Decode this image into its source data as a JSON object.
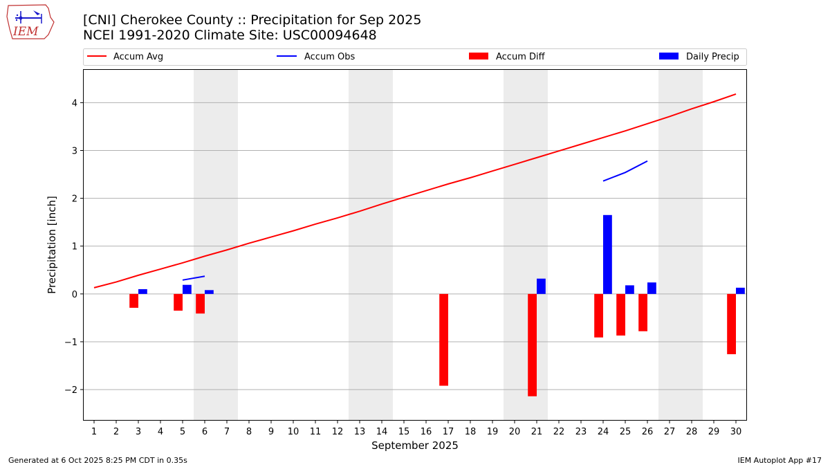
{
  "logo_text": "IEM",
  "title_line1": "[CNI] Cherokee County :: Precipitation for Sep 2025",
  "title_line2": "NCEI 1991-2020 Climate Site: USC00094648",
  "footer_left": "Generated at 6 Oct 2025 8:25 PM CDT in 0.35s",
  "footer_right": "IEM Autoplot App #17",
  "colors": {
    "avg": "#ff0000",
    "obs": "#0000ff",
    "diff": "#ff0000",
    "daily": "#0000ff",
    "weekend": "#ececec",
    "grid": "#b0b0b0"
  },
  "chart_data": {
    "type": "bar",
    "xlabel": "September 2025",
    "ylabel": "Precipitation [inch]",
    "xlim": [
      0.5,
      30.5
    ],
    "ylim": [
      -2.65,
      4.7
    ],
    "x_ticks": [
      1,
      2,
      3,
      4,
      5,
      6,
      7,
      8,
      9,
      10,
      11,
      12,
      13,
      14,
      15,
      16,
      17,
      18,
      19,
      20,
      21,
      22,
      23,
      24,
      25,
      26,
      27,
      28,
      29,
      30
    ],
    "y_ticks": [
      -2,
      -1,
      0,
      1,
      2,
      3,
      4
    ],
    "y_tick_labels": [
      "−2",
      "−1",
      "0",
      "1",
      "2",
      "3",
      "4"
    ],
    "weekend_spans": [
      [
        5.5,
        7.5
      ],
      [
        12.5,
        14.5
      ],
      [
        19.5,
        21.5
      ],
      [
        26.5,
        28.5
      ]
    ],
    "legend": [
      "Accum Avg",
      "Accum Obs",
      "Accum Diff",
      "Daily Precip"
    ],
    "accum_avg": {
      "name": "Accum Avg",
      "days": [
        1,
        2,
        3,
        4,
        5,
        6,
        7,
        8,
        9,
        10,
        11,
        12,
        13,
        14,
        15,
        16,
        17,
        18,
        19,
        20,
        21,
        22,
        23,
        24,
        25,
        26,
        27,
        28,
        29,
        30
      ],
      "values": [
        0.13,
        0.25,
        0.39,
        0.52,
        0.65,
        0.79,
        0.92,
        1.06,
        1.19,
        1.32,
        1.46,
        1.59,
        1.73,
        1.88,
        2.02,
        2.16,
        2.3,
        2.43,
        2.57,
        2.71,
        2.85,
        2.99,
        3.13,
        3.27,
        3.41,
        3.56,
        3.71,
        3.87,
        4.02,
        4.18
      ]
    },
    "accum_obs": [
      {
        "days": [
          5,
          6
        ],
        "values": [
          0.29,
          0.37
        ]
      },
      {
        "days": [
          24,
          25,
          26
        ],
        "values": [
          2.36,
          2.54,
          2.78
        ]
      }
    ],
    "accum_diff": {
      "name": "Accum Diff",
      "days": [
        3,
        5,
        6,
        17,
        21,
        24,
        25,
        26,
        30
      ],
      "values": [
        -0.29,
        -0.35,
        -0.41,
        -1.92,
        -2.14,
        -0.91,
        -0.87,
        -0.78,
        -1.26
      ]
    },
    "daily_precip": {
      "name": "Daily Precip",
      "days": [
        3,
        5,
        6,
        21,
        24,
        25,
        26,
        30
      ],
      "values": [
        0.1,
        0.19,
        0.08,
        0.32,
        1.65,
        0.18,
        0.24,
        0.13
      ]
    }
  }
}
